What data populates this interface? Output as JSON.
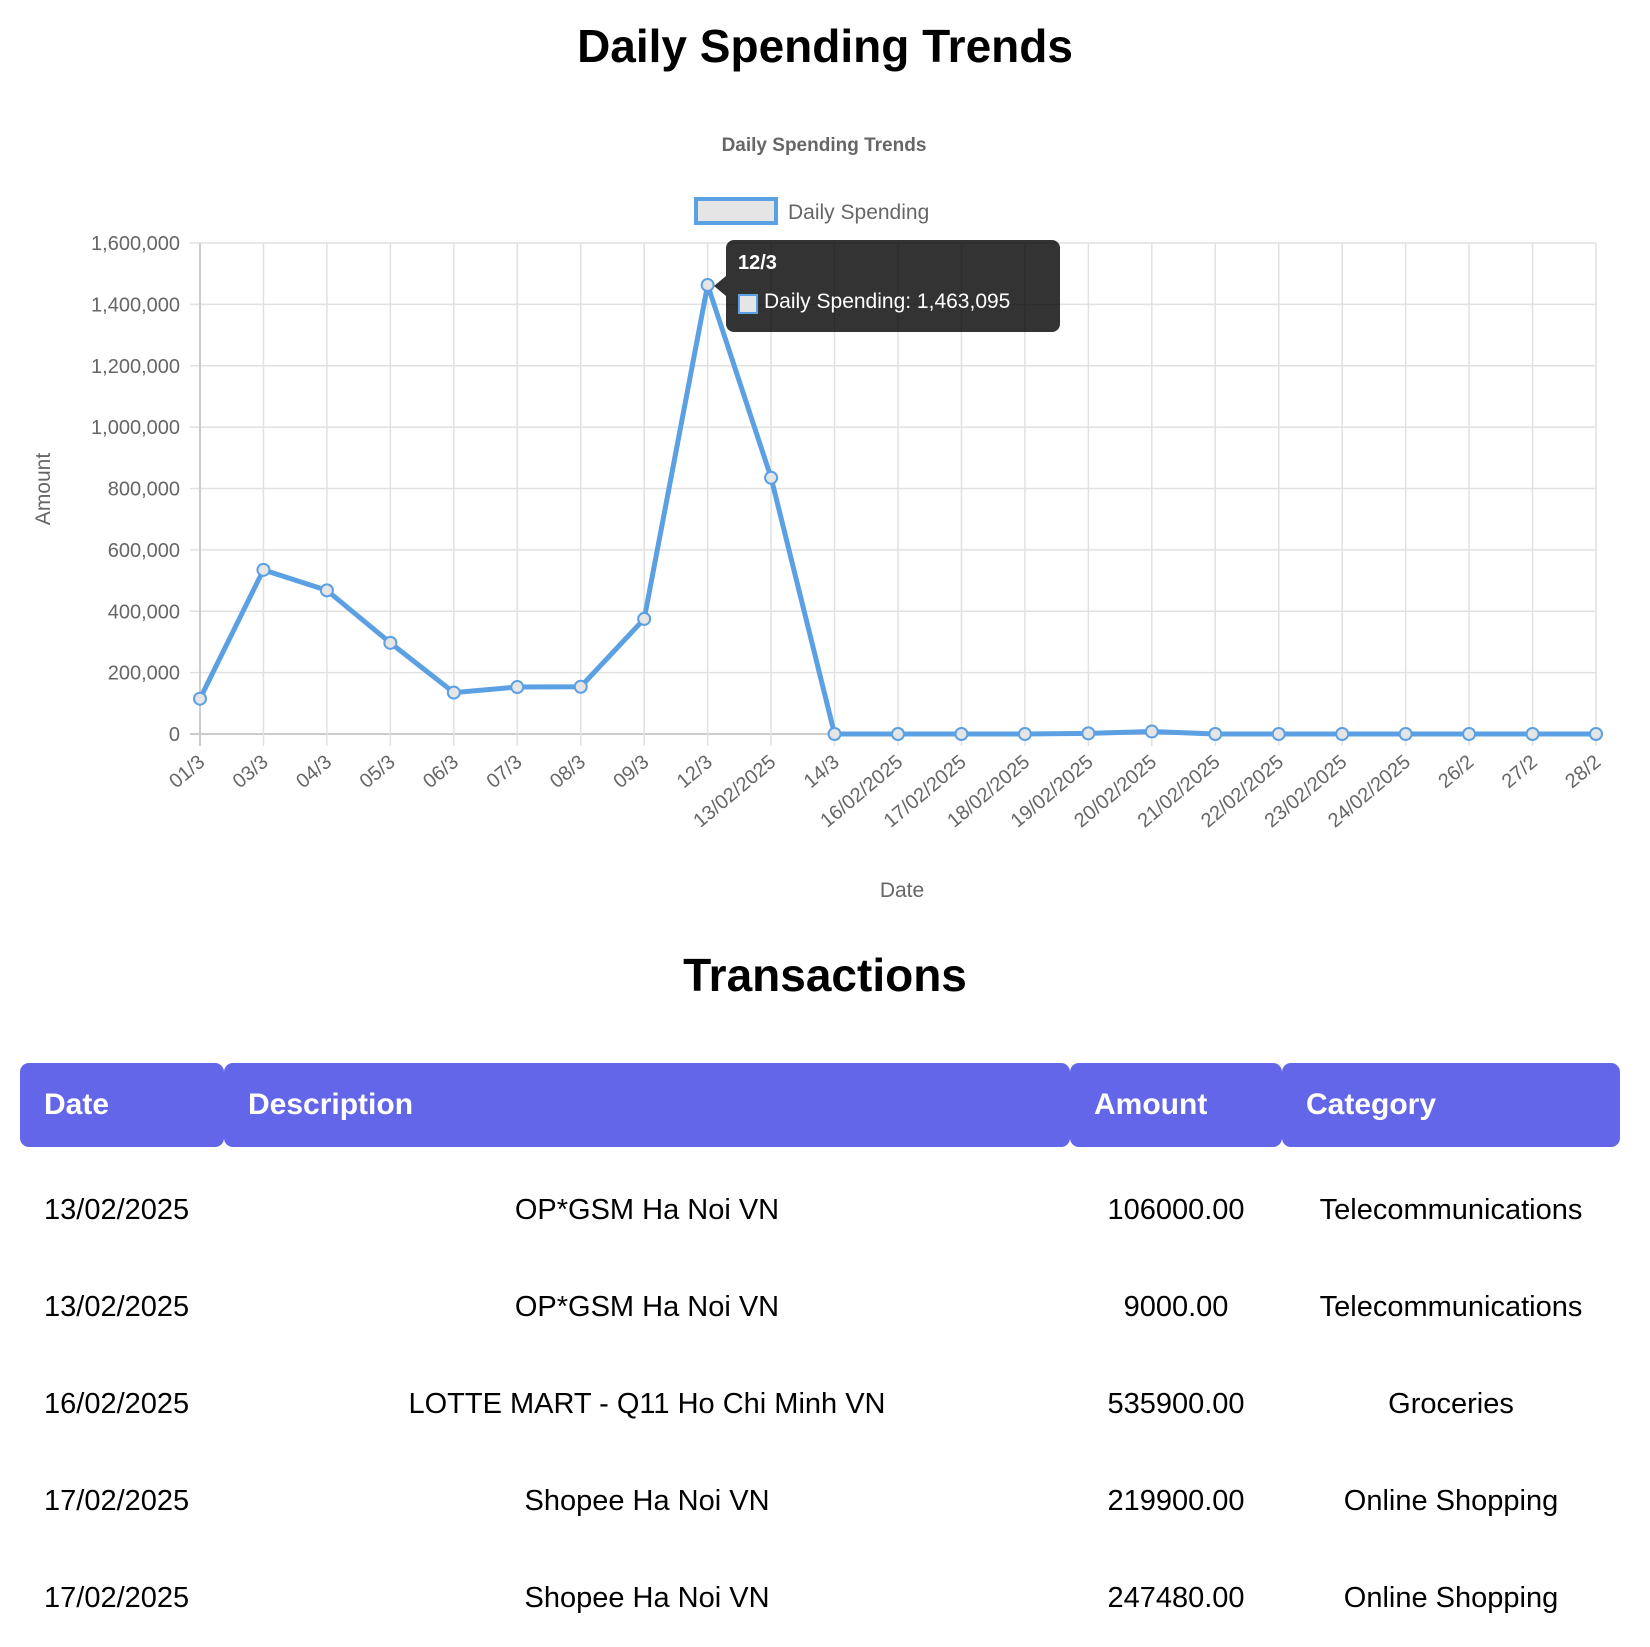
{
  "page": {
    "title": "Daily Spending Trends",
    "transactions_title": "Transactions"
  },
  "chart_data": {
    "type": "line",
    "title": "Daily Spending Trends",
    "legend": [
      "Daily Spending"
    ],
    "legend_position": "top",
    "xlabel": "Date",
    "ylabel": "Amount",
    "ylim": [
      0,
      1600000
    ],
    "yticks": [
      "0",
      "200,000",
      "400,000",
      "600,000",
      "800,000",
      "1,000,000",
      "1,200,000",
      "1,400,000",
      "1,600,000"
    ],
    "grid": true,
    "categories": [
      "01/3",
      "03/3",
      "04/3",
      "05/3",
      "06/3",
      "07/3",
      "08/3",
      "09/3",
      "12/3",
      "13/02/2025",
      "14/3",
      "16/02/2025",
      "17/02/2025",
      "18/02/2025",
      "19/02/2025",
      "20/02/2025",
      "21/02/2025",
      "22/02/2025",
      "23/02/2025",
      "24/02/2025",
      "26/2",
      "27/2",
      "28/2"
    ],
    "series": [
      {
        "name": "Daily Spending",
        "color": "#5aa0e3",
        "values": [
          115000,
          535000,
          468000,
          297000,
          135000,
          153000,
          154000,
          375000,
          1463095,
          835000,
          0,
          0,
          0,
          0,
          2000,
          8000,
          0,
          0,
          0,
          0,
          0,
          0,
          0
        ]
      }
    ],
    "tooltip": {
      "title": "12/3",
      "label": "Daily Spending: 1,463,095"
    }
  },
  "table": {
    "headers": [
      "Date",
      "Description",
      "Amount",
      "Category"
    ],
    "rows": [
      {
        "date": "13/02/2025",
        "description": "OP*GSM Ha Noi VN",
        "amount": "106000.00",
        "category": "Telecommunications"
      },
      {
        "date": "13/02/2025",
        "description": "OP*GSM Ha Noi VN",
        "amount": "9000.00",
        "category": "Telecommunications"
      },
      {
        "date": "16/02/2025",
        "description": "LOTTE MART - Q11 Ho Chi Minh VN",
        "amount": "535900.00",
        "category": "Groceries"
      },
      {
        "date": "17/02/2025",
        "description": "Shopee Ha Noi VN",
        "amount": "219900.00",
        "category": "Online Shopping"
      },
      {
        "date": "17/02/2025",
        "description": "Shopee Ha Noi VN",
        "amount": "247480.00",
        "category": "Online Shopping"
      }
    ]
  },
  "colors": {
    "line": "#5aa0e3",
    "legend_fill": "#e5e5e5",
    "header_bg": "#6366e9",
    "grid": "#e1e1e1",
    "axis_text": "#666666"
  }
}
